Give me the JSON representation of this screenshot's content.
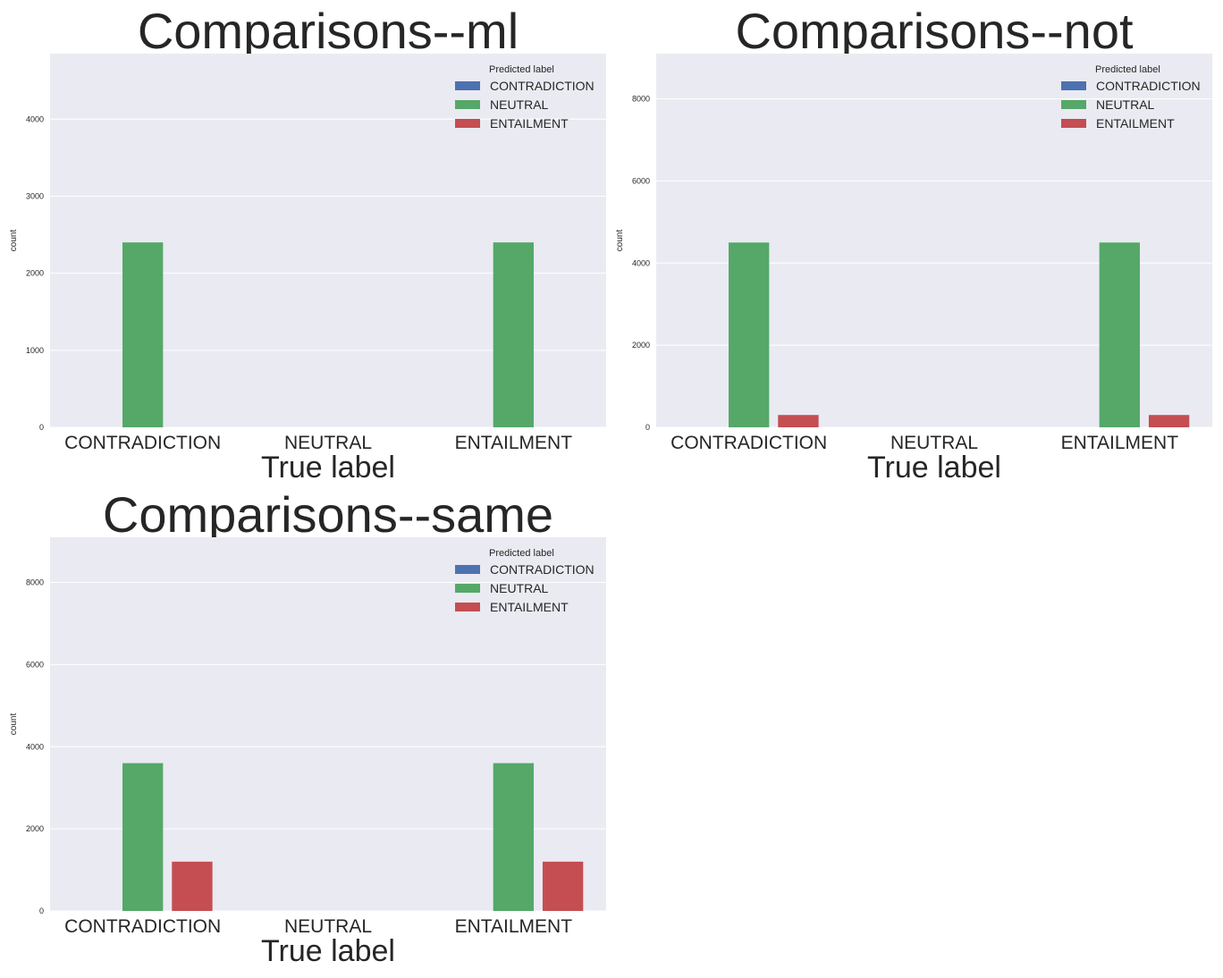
{
  "chart_data": [
    {
      "type": "bar",
      "title": "Comparisons--ml",
      "xlabel": "True label",
      "ylabel": "count",
      "categories": [
        "CONTRADICTION",
        "NEUTRAL",
        "ENTAILMENT"
      ],
      "series": [
        {
          "name": "CONTRADICTION",
          "values": [
            0,
            0,
            0
          ]
        },
        {
          "name": "NEUTRAL",
          "values": [
            2400,
            0,
            2400
          ]
        },
        {
          "name": "ENTAILMENT",
          "values": [
            0,
            0,
            0
          ]
        }
      ],
      "ylim": [
        0,
        4850
      ],
      "yticks": [
        0,
        1000,
        2000,
        3000,
        4000
      ],
      "legend": {
        "title": "Predicted label",
        "placement": "top-right"
      },
      "grid": true
    },
    {
      "type": "bar",
      "title": "Comparisons--not",
      "xlabel": "True label",
      "ylabel": "count",
      "categories": [
        "CONTRADICTION",
        "NEUTRAL",
        "ENTAILMENT"
      ],
      "series": [
        {
          "name": "CONTRADICTION",
          "values": [
            0,
            0,
            0
          ]
        },
        {
          "name": "NEUTRAL",
          "values": [
            4500,
            0,
            4500
          ]
        },
        {
          "name": "ENTAILMENT",
          "values": [
            300,
            0,
            300
          ]
        }
      ],
      "ylim": [
        0,
        9100
      ],
      "yticks": [
        0,
        2000,
        4000,
        6000,
        8000
      ],
      "legend": {
        "title": "Predicted label",
        "placement": "top-right"
      },
      "grid": true
    },
    {
      "type": "bar",
      "title": "Comparisons--same",
      "xlabel": "True label",
      "ylabel": "count",
      "categories": [
        "CONTRADICTION",
        "NEUTRAL",
        "ENTAILMENT"
      ],
      "series": [
        {
          "name": "CONTRADICTION",
          "values": [
            0,
            0,
            0
          ]
        },
        {
          "name": "NEUTRAL",
          "values": [
            3600,
            0,
            3600
          ]
        },
        {
          "name": "ENTAILMENT",
          "values": [
            1200,
            0,
            1200
          ]
        }
      ],
      "ylim": [
        0,
        9100
      ],
      "yticks": [
        0,
        2000,
        4000,
        6000,
        8000
      ],
      "legend": {
        "title": "Predicted label",
        "placement": "top-right"
      },
      "grid": true
    }
  ],
  "colors": {
    "CONTRADICTION": "#4c72b0",
    "NEUTRAL": "#55a868",
    "ENTAILMENT": "#c44e52",
    "plot_background": "#eaeaf2",
    "grid": "#ffffff"
  }
}
